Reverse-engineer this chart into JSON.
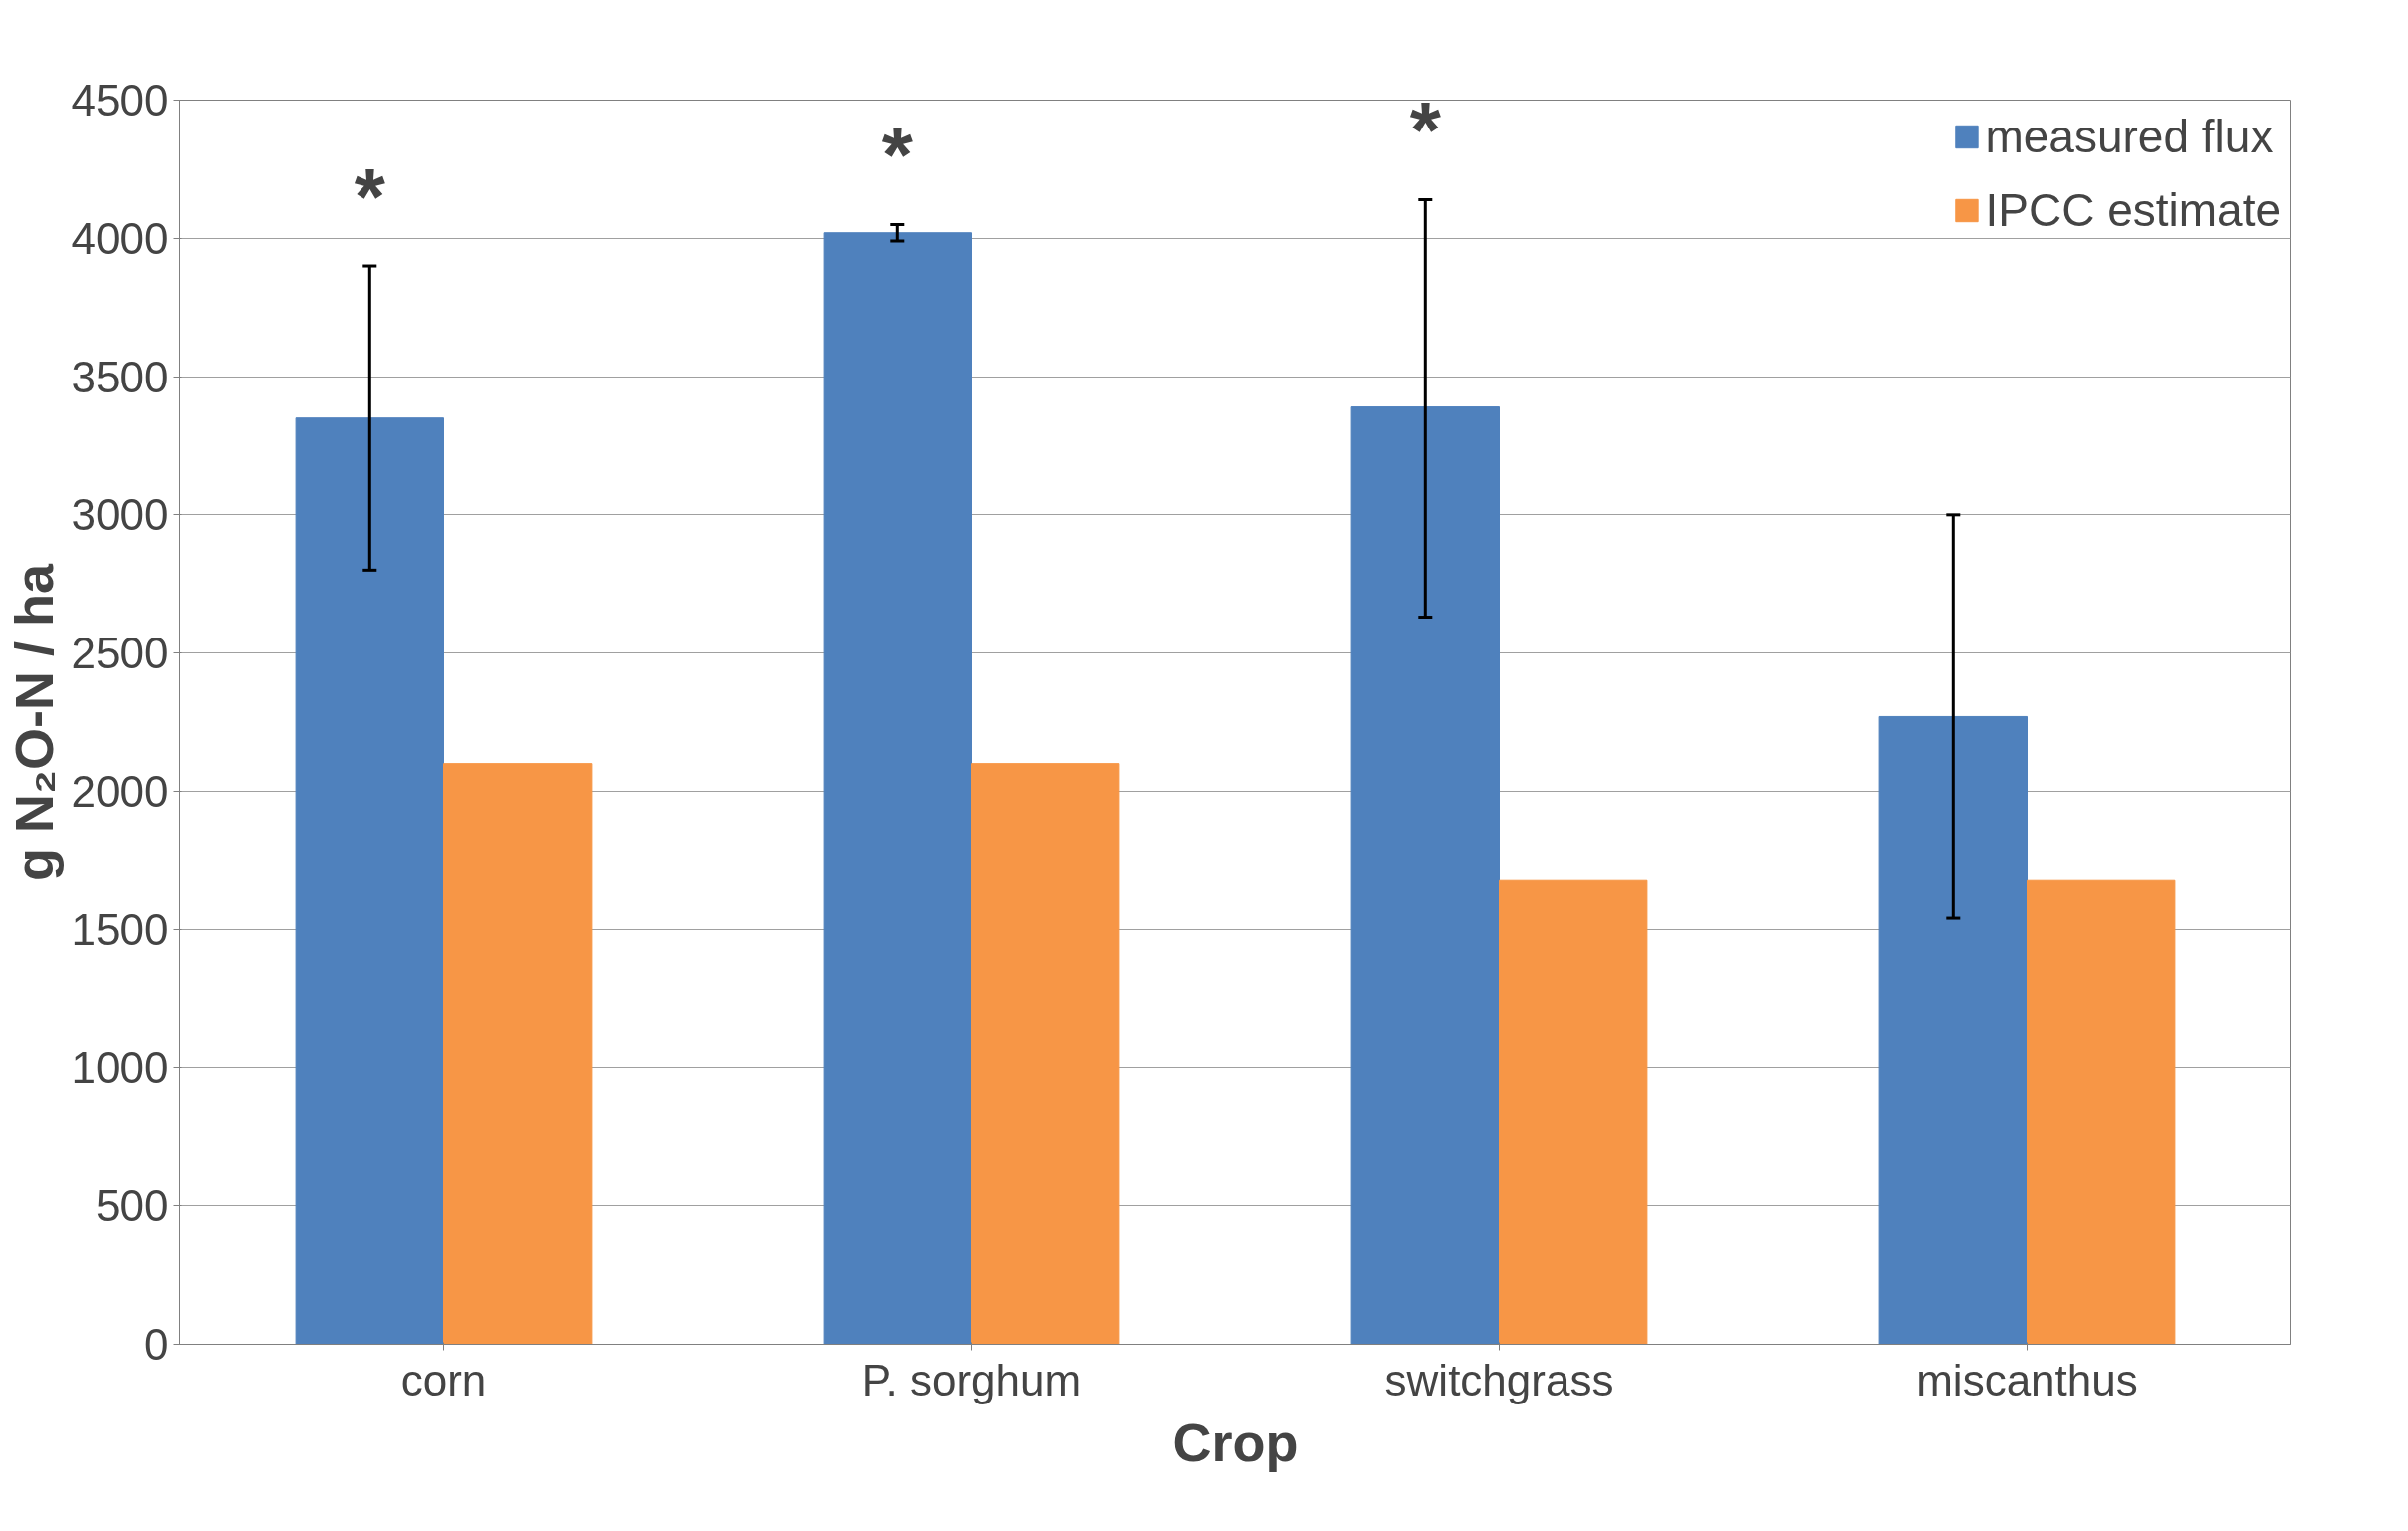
{
  "chart_data": {
    "type": "bar",
    "xlabel": "Crop",
    "ylabel": "g N₂O-N / ha",
    "categories": [
      "corn",
      "P. sorghum",
      "switchgrass",
      "miscanthus"
    ],
    "series": [
      {
        "name": "measured flux",
        "color": "#4f81bd",
        "values": [
          3350,
          4020,
          3390,
          2270
        ],
        "errors": [
          [
            2800,
            3900
          ],
          [
            3990,
            4050
          ],
          [
            2630,
            4140
          ],
          [
            1540,
            3000
          ]
        ]
      },
      {
        "name": "IPCC estimate",
        "color": "#f79646",
        "values": [
          2100,
          2100,
          1680,
          1680
        ]
      }
    ],
    "ylim": [
      0,
      4500
    ],
    "yticks": [
      0,
      500,
      1000,
      1500,
      2000,
      2500,
      3000,
      3500,
      4000,
      4500
    ],
    "grid": "y",
    "legend": "top right",
    "annotations": [
      "*",
      "*",
      "*"
    ]
  }
}
